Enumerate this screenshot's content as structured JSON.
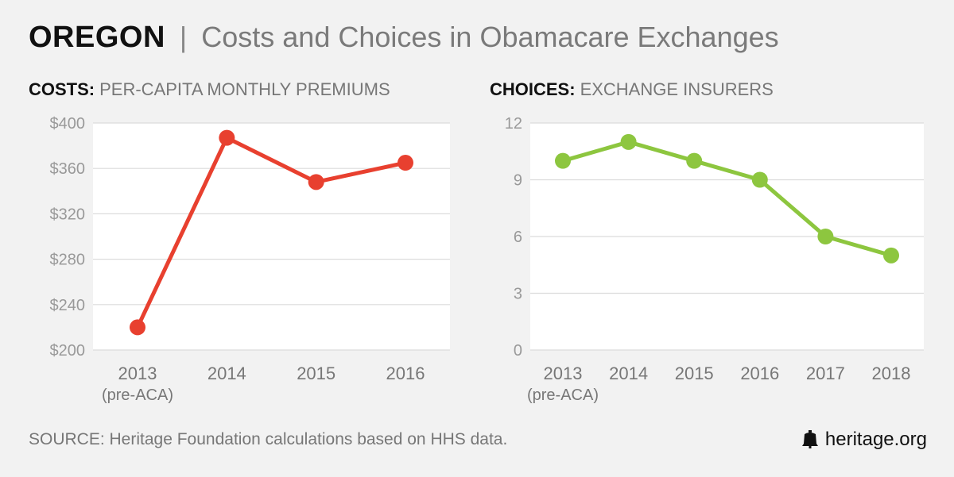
{
  "header": {
    "state": "OREGON",
    "separator": "|",
    "title": "Costs and Choices in Obamacare Exchanges"
  },
  "footer": {
    "source": "SOURCE: Heritage Foundation calculations based on HHS data.",
    "brand": "heritage.org",
    "brand_icon": "liberty-bell-icon"
  },
  "colors": {
    "costs": "#e8402f",
    "choices": "#8dc63f",
    "grid": "#dcdcdc",
    "plot_bg": "#ffffff"
  },
  "chart_data": [
    {
      "type": "line",
      "title_bold": "COSTS:",
      "title_rest": "PER-CAPITA MONTHLY PREMIUMS",
      "categories": [
        "2013",
        "2014",
        "2015",
        "2016"
      ],
      "category_sub": [
        "(pre-ACA)",
        "",
        "",
        ""
      ],
      "values": [
        220,
        387,
        348,
        365
      ],
      "ylim": [
        200,
        400
      ],
      "yticks": [
        200,
        240,
        280,
        320,
        360,
        400
      ],
      "ytick_labels": [
        "$200",
        "$240",
        "$280",
        "$320",
        "$360",
        "$400"
      ],
      "color": "#e8402f",
      "xlabel": "",
      "ylabel": ""
    },
    {
      "type": "line",
      "title_bold": "CHOICES:",
      "title_rest": "EXCHANGE INSURERS",
      "categories": [
        "2013",
        "2014",
        "2015",
        "2016",
        "2017",
        "2018"
      ],
      "category_sub": [
        "(pre-ACA)",
        "",
        "",
        "",
        "",
        ""
      ],
      "values": [
        10,
        11,
        10,
        9,
        6,
        5
      ],
      "ylim": [
        0,
        12
      ],
      "yticks": [
        0,
        3,
        6,
        9,
        12
      ],
      "ytick_labels": [
        "0",
        "3",
        "6",
        "9",
        "12"
      ],
      "color": "#8dc63f",
      "xlabel": "",
      "ylabel": ""
    }
  ]
}
